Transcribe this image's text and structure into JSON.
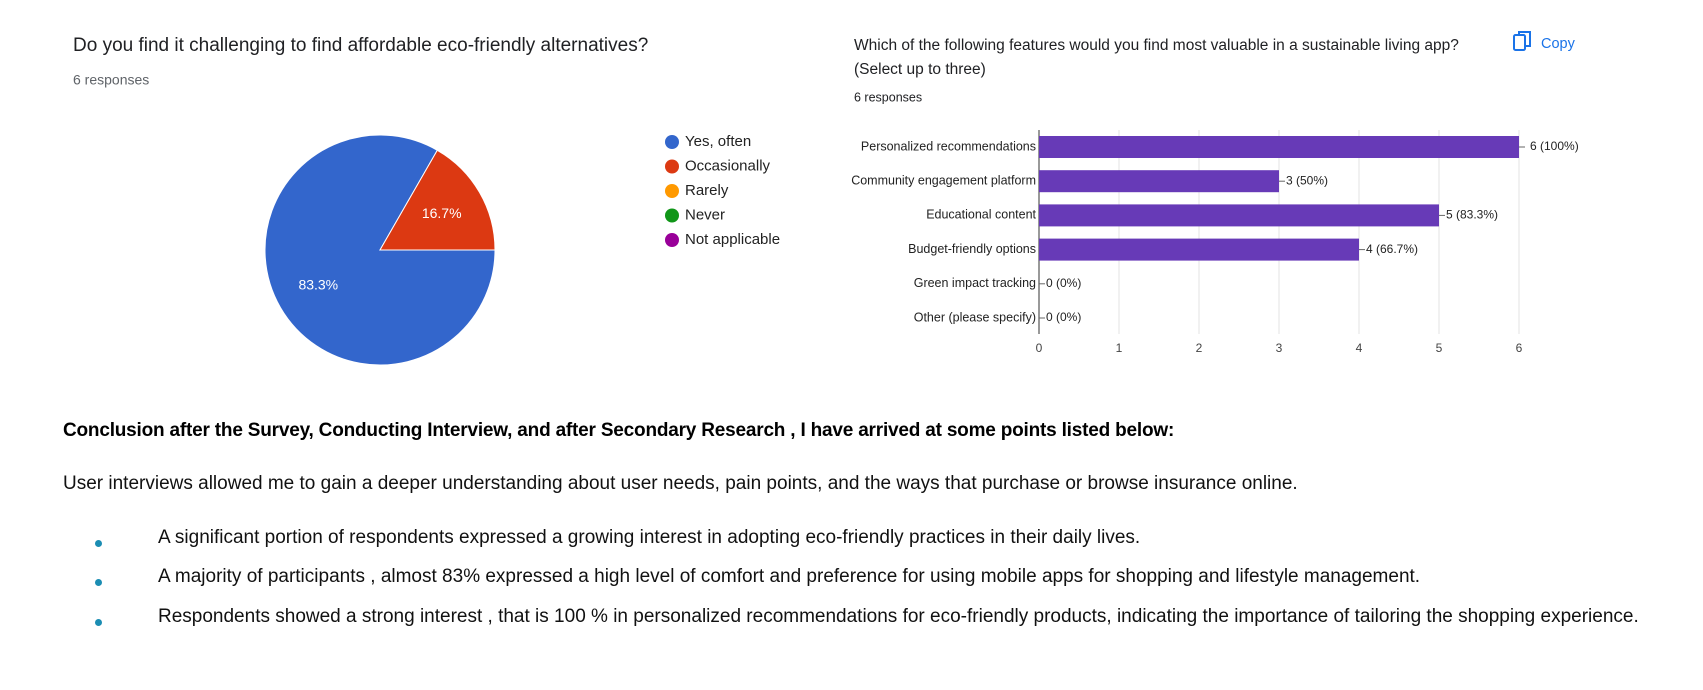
{
  "chart_data": [
    {
      "type": "pie",
      "title": "Do you find it challenging to find affordable eco-friendly alternatives?",
      "subtitle": "6 responses",
      "categories": [
        "Yes, often",
        "Occasionally",
        "Rarely",
        "Never",
        "Not applicable"
      ],
      "values": [
        83.3,
        16.7,
        0,
        0,
        0
      ],
      "value_labels": [
        "83.3%",
        "16.7%",
        null,
        null,
        null
      ],
      "colors": [
        "#3366cc",
        "#dc3912",
        "#ff9900",
        "#109618",
        "#990099"
      ],
      "legend": "right"
    },
    {
      "type": "hbar",
      "title": "Which of the following features would you find most valuable in a sustainable living app? (Select up to three)",
      "subtitle": "6 responses",
      "button": "Copy",
      "categories": [
        "Personalized recommendations",
        "Community engagement platform",
        "Educational content",
        "Budget-friendly options",
        "Green impact tracking",
        "Other (please specify)"
      ],
      "values": [
        6,
        3,
        5,
        4,
        0,
        0
      ],
      "value_labels": [
        "6 (100%)",
        "3 (50%)",
        "5 (83.3%)",
        "4 (66.7%)",
        "0 (0%)",
        "0 (0%)"
      ],
      "color": "#673ab7",
      "xlim": [
        0,
        6
      ],
      "xticks": [
        0,
        1,
        2,
        3,
        4,
        5,
        6
      ],
      "grid": true
    }
  ],
  "conclusion": {
    "heading": "Conclusion after the Survey, Conducting Interview, and after Secondary Research , I have arrived at some points listed below:",
    "paragraph": "User interviews allowed me to gain a deeper understanding about user needs, pain points, and the ways that purchase or browse insurance online.",
    "bullets": [
      "A significant portion of respondents expressed a growing interest in adopting eco-friendly practices in their daily lives.",
      "A majority of participants , almost 83% expressed a high level of comfort and preference for using mobile apps for shopping and lifestyle management.",
      "Respondents showed a strong interest , that is 100 % in personalized recommendations for eco-friendly products, indicating the importance of tailoring the shopping experience."
    ]
  }
}
